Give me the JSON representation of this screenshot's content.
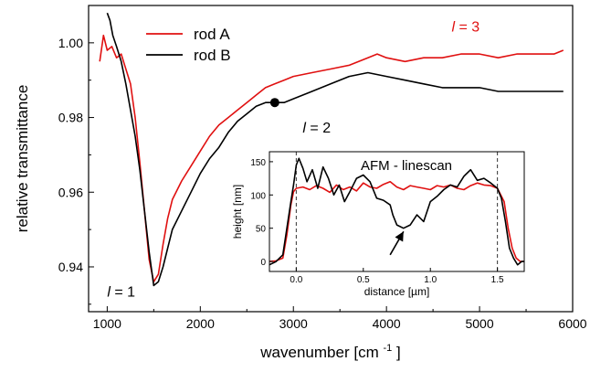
{
  "chart_data": [
    {
      "type": "line",
      "xlabel": "wavenumber",
      "xlabel_unit": "[cm",
      "xlabel_exp": "-1",
      "xlabel_close": "]",
      "ylabel": "relative transmittance",
      "xlim": [
        800,
        6000
      ],
      "ylim": [
        0.928,
        1.01
      ],
      "xticks": [
        1000,
        2000,
        3000,
        4000,
        5000,
        6000
      ],
      "yticks": [
        0.94,
        0.96,
        0.98,
        1.0
      ],
      "ytick_labels": [
        "0.94",
        "0.96",
        "0.98",
        "1.00"
      ],
      "grid": false,
      "legend_position": "top-left",
      "series": [
        {
          "name": "rod A",
          "color": "#e01010",
          "x": [
            920,
            960,
            1000,
            1050,
            1100,
            1150,
            1200,
            1250,
            1300,
            1350,
            1400,
            1450,
            1500,
            1550,
            1600,
            1650,
            1700,
            1800,
            1900,
            2000,
            2100,
            2200,
            2300,
            2400,
            2500,
            2600,
            2700,
            2800,
            2900,
            3000,
            3200,
            3400,
            3600,
            3800,
            3900,
            4000,
            4200,
            4400,
            4600,
            4800,
            5000,
            5200,
            5400,
            5600,
            5800,
            5900
          ],
          "y": [
            0.995,
            1.002,
            0.998,
            0.999,
            0.996,
            0.997,
            0.993,
            0.989,
            0.98,
            0.968,
            0.955,
            0.942,
            0.936,
            0.938,
            0.946,
            0.953,
            0.958,
            0.963,
            0.967,
            0.971,
            0.975,
            0.978,
            0.98,
            0.982,
            0.984,
            0.986,
            0.988,
            0.989,
            0.99,
            0.991,
            0.992,
            0.993,
            0.994,
            0.996,
            0.997,
            0.996,
            0.995,
            0.996,
            0.996,
            0.997,
            0.997,
            0.996,
            0.997,
            0.997,
            0.997,
            0.998
          ]
        },
        {
          "name": "rod B",
          "color": "#000000",
          "x": [
            1000,
            1030,
            1060,
            1100,
            1150,
            1200,
            1250,
            1300,
            1350,
            1400,
            1450,
            1500,
            1550,
            1600,
            1650,
            1700,
            1800,
            1900,
            2000,
            2100,
            2200,
            2300,
            2400,
            2500,
            2600,
            2700,
            2800,
            2900,
            3000,
            3200,
            3400,
            3600,
            3800,
            4000,
            4200,
            4400,
            4600,
            4800,
            5000,
            5200,
            5400,
            5600,
            5800,
            5900
          ],
          "y": [
            1.008,
            1.006,
            1.002,
            0.999,
            0.995,
            0.989,
            0.982,
            0.975,
            0.966,
            0.955,
            0.944,
            0.935,
            0.936,
            0.94,
            0.945,
            0.95,
            0.955,
            0.96,
            0.965,
            0.969,
            0.972,
            0.976,
            0.979,
            0.981,
            0.983,
            0.984,
            0.984,
            0.984,
            0.985,
            0.987,
            0.989,
            0.991,
            0.992,
            0.991,
            0.99,
            0.989,
            0.988,
            0.988,
            0.988,
            0.987,
            0.987,
            0.987,
            0.987,
            0.987
          ]
        }
      ],
      "marker_point": {
        "x": 2800,
        "y": 0.984,
        "color": "#000000"
      },
      "annotations": [
        {
          "prefix": "l",
          "text": " = 3",
          "x": 4700,
          "y": 1.003,
          "color": "#e01010"
        },
        {
          "prefix": "l",
          "text": " = 2",
          "x": 3100,
          "y": 0.976,
          "color": "#000000"
        },
        {
          "prefix": "l",
          "text": " = 1",
          "x": 1000,
          "y": 0.932,
          "color": "#000000"
        }
      ]
    },
    {
      "type": "line",
      "title": "AFM - linescan",
      "xlabel": "distance [µm]",
      "ylabel": "height [nm]",
      "xlim": [
        -0.2,
        1.7
      ],
      "ylim": [
        -15,
        165
      ],
      "xticks": [
        0.0,
        0.5,
        1.0,
        1.5
      ],
      "xtick_labels": [
        "0.0",
        "0.5",
        "1.0",
        "1.5"
      ],
      "yticks": [
        0,
        50,
        100,
        150
      ],
      "ytick_labels": [
        "0",
        "50",
        "100",
        "150"
      ],
      "vlines": [
        0.0,
        1.5
      ],
      "arrow": {
        "from": [
          0.7,
          10
        ],
        "to": [
          0.8,
          45
        ]
      },
      "series": [
        {
          "name": "",
          "color": "#e01010",
          "x": [
            -0.2,
            -0.15,
            -0.1,
            -0.07,
            -0.04,
            -0.02,
            0.0,
            0.05,
            0.1,
            0.15,
            0.2,
            0.25,
            0.3,
            0.35,
            0.4,
            0.45,
            0.5,
            0.55,
            0.6,
            0.65,
            0.7,
            0.75,
            0.8,
            0.85,
            0.9,
            0.95,
            1.0,
            1.05,
            1.1,
            1.15,
            1.2,
            1.25,
            1.3,
            1.35,
            1.4,
            1.45,
            1.5,
            1.55,
            1.58,
            1.61,
            1.64,
            1.67,
            1.7
          ],
          "y": [
            0,
            1,
            5,
            40,
            85,
            105,
            110,
            112,
            108,
            114,
            110,
            104,
            115,
            108,
            112,
            106,
            118,
            112,
            110,
            116,
            120,
            112,
            108,
            114,
            112,
            110,
            108,
            114,
            112,
            115,
            110,
            108,
            114,
            118,
            115,
            114,
            110,
            90,
            50,
            20,
            5,
            0,
            0
          ]
        },
        {
          "name": "",
          "color": "#000000",
          "x": [
            -0.2,
            -0.15,
            -0.1,
            -0.07,
            -0.04,
            -0.02,
            0.0,
            0.02,
            0.05,
            0.08,
            0.12,
            0.16,
            0.2,
            0.24,
            0.28,
            0.32,
            0.36,
            0.4,
            0.45,
            0.5,
            0.55,
            0.6,
            0.65,
            0.7,
            0.72,
            0.75,
            0.8,
            0.85,
            0.9,
            0.95,
            1.0,
            1.05,
            1.1,
            1.15,
            1.2,
            1.25,
            1.3,
            1.35,
            1.4,
            1.45,
            1.5,
            1.53,
            1.56,
            1.59,
            1.62,
            1.65,
            1.68,
            1.7
          ],
          "y": [
            -5,
            0,
            10,
            50,
            90,
            115,
            145,
            155,
            140,
            120,
            138,
            110,
            142,
            125,
            100,
            115,
            90,
            105,
            125,
            130,
            120,
            95,
            92,
            85,
            70,
            55,
            50,
            55,
            70,
            60,
            90,
            98,
            108,
            115,
            112,
            128,
            138,
            122,
            125,
            118,
            110,
            95,
            60,
            20,
            5,
            -5,
            0,
            0
          ]
        }
      ]
    }
  ]
}
